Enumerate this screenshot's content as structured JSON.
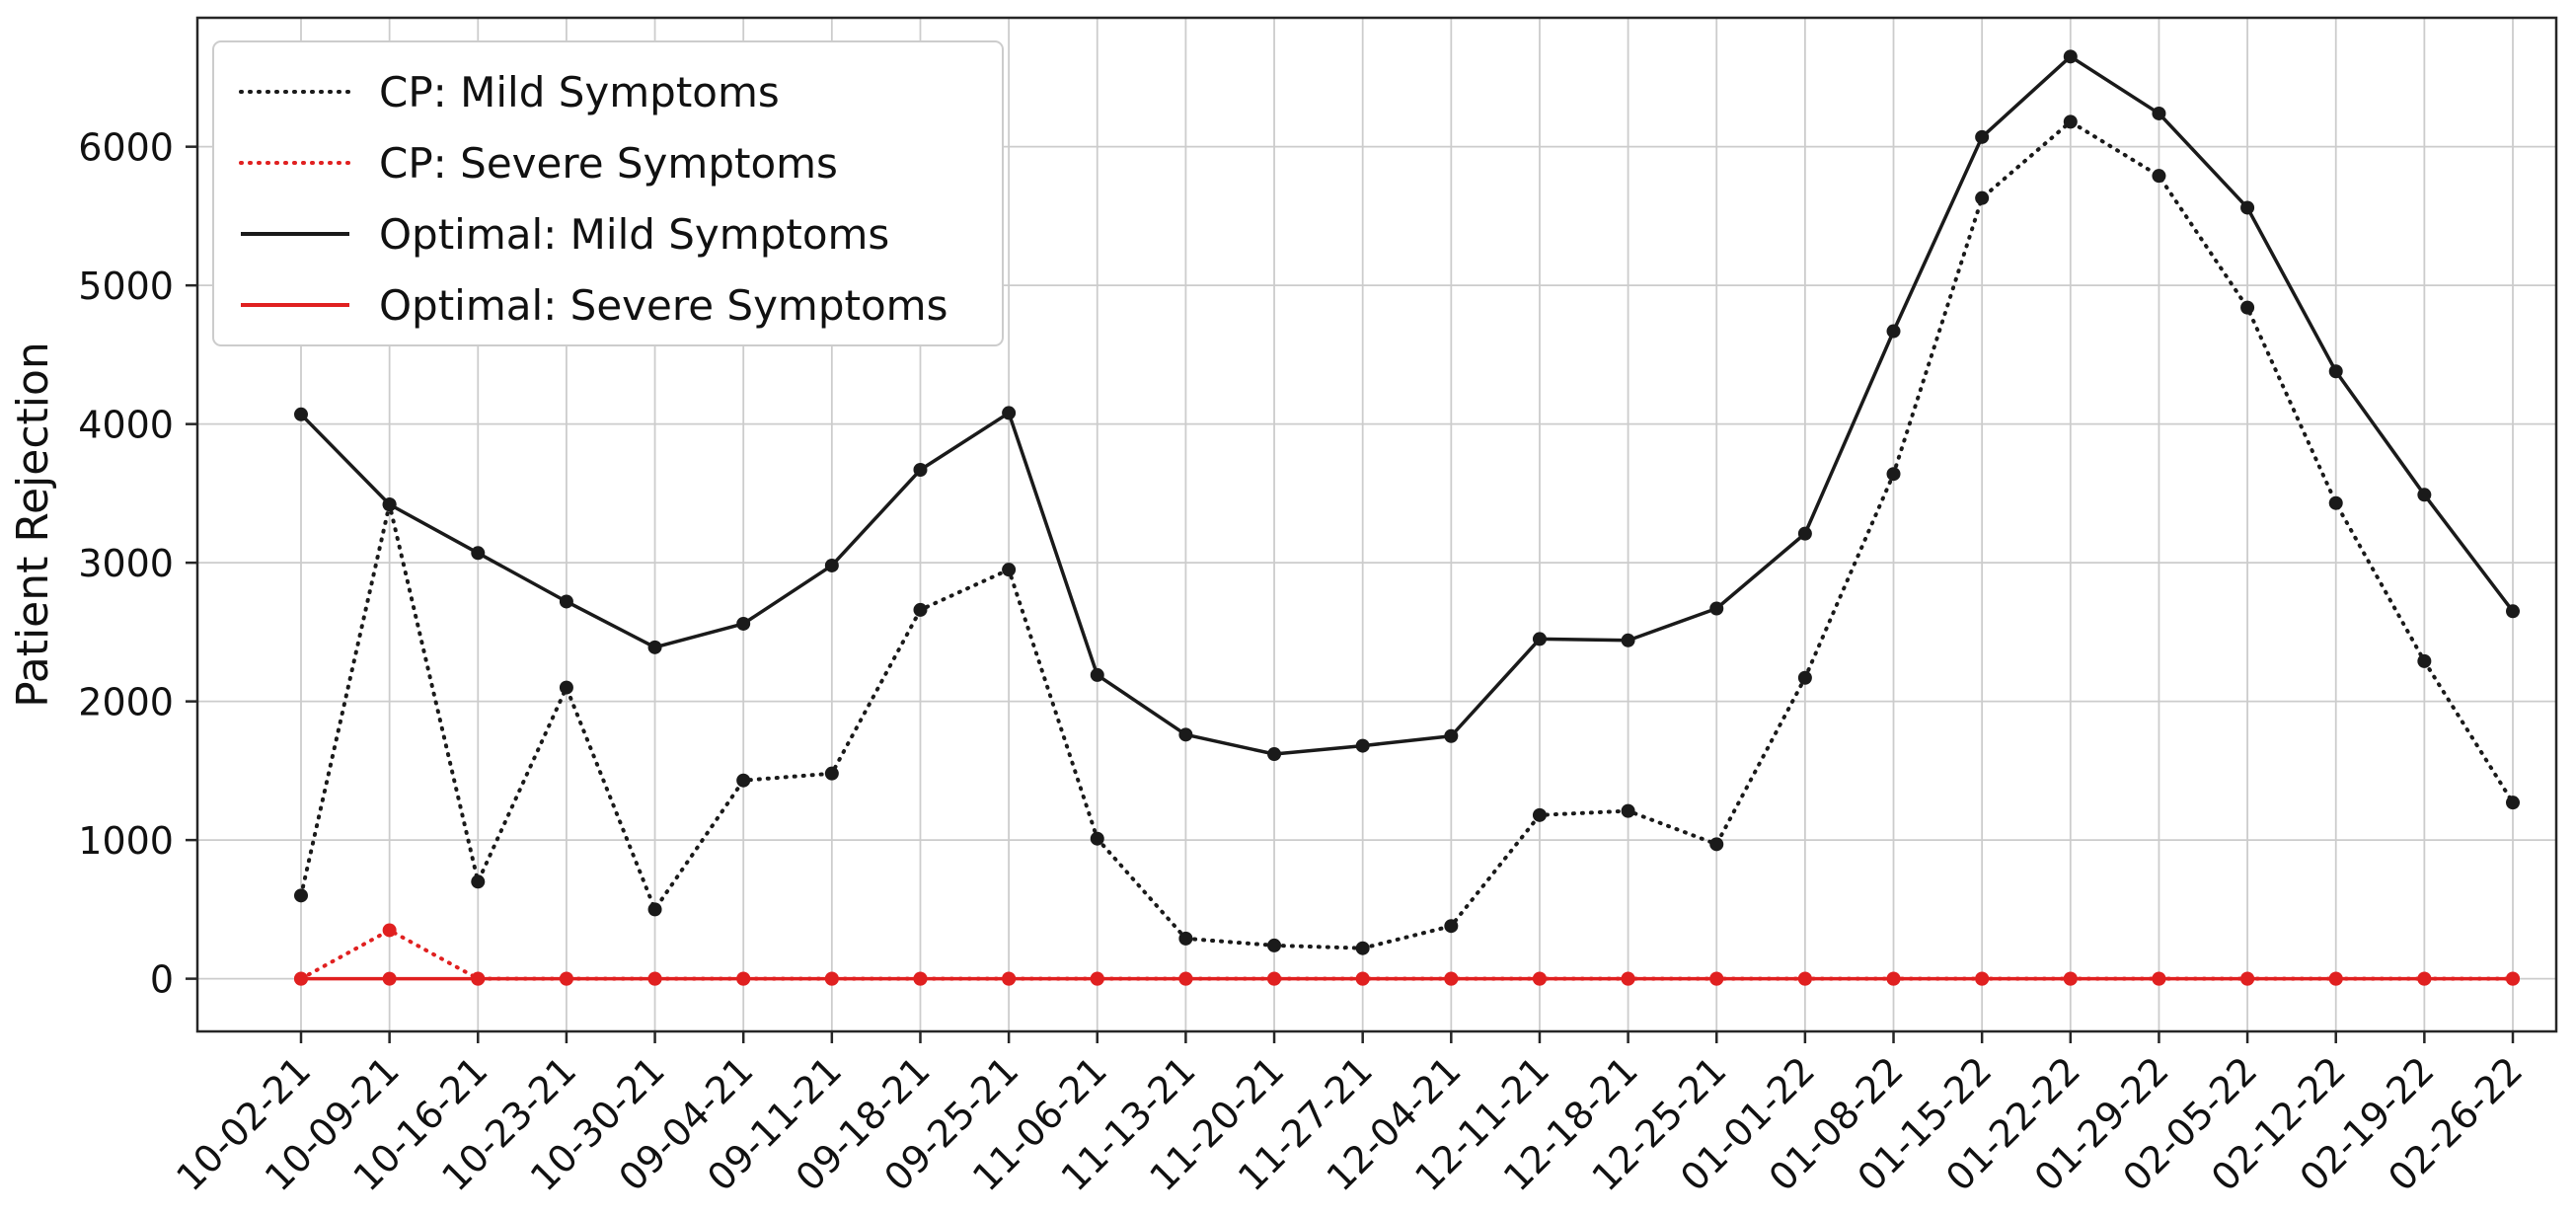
{
  "chart_data": {
    "type": "line",
    "title": "",
    "xlabel": "",
    "ylabel": "Patient Rejection",
    "grid": true,
    "legend_position": "upper left",
    "ylim": [
      -380,
      6930
    ],
    "yticks": [
      0,
      1000,
      2000,
      3000,
      4000,
      5000,
      6000
    ],
    "categories": [
      "10-02-21",
      "10-09-21",
      "10-16-21",
      "10-23-21",
      "10-30-21",
      "09-04-21",
      "09-11-21",
      "09-18-21",
      "09-25-21",
      "11-06-21",
      "11-13-21",
      "11-20-21",
      "11-27-21",
      "12-04-21",
      "12-11-21",
      "12-18-21",
      "12-25-21",
      "01-01-22",
      "01-08-22",
      "01-15-22",
      "01-22-22",
      "01-29-22",
      "02-05-22",
      "02-12-22",
      "02-19-22",
      "02-26-22"
    ],
    "series": [
      {
        "name": "CP: Mild Symptoms",
        "color": "#1a1a1a",
        "style": "dotted",
        "marker": "circle",
        "values": [
          600,
          3420,
          700,
          2100,
          500,
          1430,
          1480,
          2660,
          2950,
          1010,
          290,
          240,
          220,
          380,
          1180,
          1210,
          970,
          2170,
          3640,
          5630,
          6180,
          5790,
          4840,
          3430,
          2290,
          1270
        ]
      },
      {
        "name": "CP: Severe Symptoms",
        "color": "#e02020",
        "style": "dotted",
        "marker": "circle",
        "values": [
          0,
          350,
          0,
          0,
          0,
          0,
          0,
          0,
          0,
          0,
          0,
          0,
          0,
          0,
          0,
          0,
          0,
          0,
          0,
          0,
          0,
          0,
          0,
          0,
          0,
          0
        ]
      },
      {
        "name": "Optimal: Mild Symptoms",
        "color": "#1a1a1a",
        "style": "solid",
        "marker": "circle",
        "values": [
          4070,
          3420,
          3070,
          2720,
          2390,
          2560,
          2980,
          3670,
          4080,
          2190,
          1760,
          1620,
          1680,
          1750,
          2450,
          2440,
          2670,
          3210,
          4670,
          6070,
          6650,
          6240,
          5560,
          4380,
          3490,
          2650
        ]
      },
      {
        "name": "Optimal: Severe Symptoms",
        "color": "#e02020",
        "style": "solid",
        "marker": "circle",
        "values": [
          0,
          0,
          0,
          0,
          0,
          0,
          0,
          0,
          0,
          0,
          0,
          0,
          0,
          0,
          0,
          0,
          0,
          0,
          0,
          0,
          0,
          0,
          0,
          0,
          0,
          0
        ]
      }
    ]
  },
  "colors": {
    "grid": "#cccccc",
    "axis": "#262626",
    "text": "#111111",
    "background": "#ffffff",
    "legend_border": "#cccccc"
  }
}
